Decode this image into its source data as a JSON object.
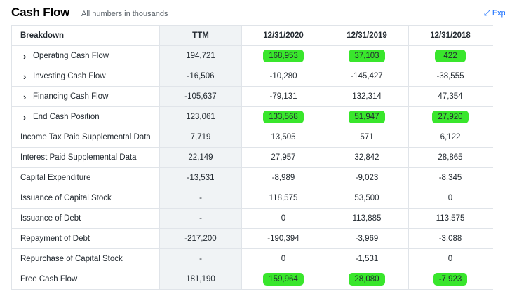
{
  "header": {
    "title": "Cash Flow",
    "subtitle": "All numbers in thousands",
    "expand_label": "Exp"
  },
  "table": {
    "columns": [
      "Breakdown",
      "TTM",
      "12/31/2020",
      "12/31/2019",
      "12/31/2018"
    ],
    "rows": [
      {
        "label": "Operating Cash Flow",
        "expandable": true,
        "values": [
          "194,721",
          "168,953",
          "37,103",
          "422"
        ],
        "highlight": [
          false,
          true,
          true,
          true
        ]
      },
      {
        "label": "Investing Cash Flow",
        "expandable": true,
        "values": [
          "-16,506",
          "-10,280",
          "-145,427",
          "-38,555"
        ],
        "highlight": [
          false,
          false,
          false,
          false
        ]
      },
      {
        "label": "Financing Cash Flow",
        "expandable": true,
        "values": [
          "-105,637",
          "-79,131",
          "132,314",
          "47,354"
        ],
        "highlight": [
          false,
          false,
          false,
          false
        ]
      },
      {
        "label": "End Cash Position",
        "expandable": true,
        "values": [
          "123,061",
          "133,568",
          "51,947",
          "27,920"
        ],
        "highlight": [
          false,
          true,
          true,
          true
        ]
      },
      {
        "label": "Income Tax Paid Supplemental Data",
        "expandable": false,
        "values": [
          "7,719",
          "13,505",
          "571",
          "6,122"
        ],
        "highlight": [
          false,
          false,
          false,
          false
        ]
      },
      {
        "label": "Interest Paid Supplemental Data",
        "expandable": false,
        "values": [
          "22,149",
          "27,957",
          "32,842",
          "28,865"
        ],
        "highlight": [
          false,
          false,
          false,
          false
        ]
      },
      {
        "label": "Capital Expenditure",
        "expandable": false,
        "values": [
          "-13,531",
          "-8,989",
          "-9,023",
          "-8,345"
        ],
        "highlight": [
          false,
          false,
          false,
          false
        ]
      },
      {
        "label": "Issuance of Capital Stock",
        "expandable": false,
        "values": [
          "-",
          "118,575",
          "53,500",
          "0"
        ],
        "highlight": [
          false,
          false,
          false,
          false
        ]
      },
      {
        "label": "Issuance of Debt",
        "expandable": false,
        "values": [
          "-",
          "0",
          "113,885",
          "113,575"
        ],
        "highlight": [
          false,
          false,
          false,
          false
        ]
      },
      {
        "label": "Repayment of Debt",
        "expandable": false,
        "values": [
          "-217,200",
          "-190,394",
          "-3,969",
          "-3,088"
        ],
        "highlight": [
          false,
          false,
          false,
          false
        ]
      },
      {
        "label": "Repurchase of Capital Stock",
        "expandable": false,
        "values": [
          "-",
          "0",
          "-1,531",
          "0"
        ],
        "highlight": [
          false,
          false,
          false,
          false
        ]
      },
      {
        "label": "Free Cash Flow",
        "expandable": false,
        "values": [
          "181,190",
          "159,964",
          "28,080",
          "-7,923"
        ],
        "highlight": [
          false,
          true,
          true,
          true
        ]
      }
    ]
  },
  "colors": {
    "highlight": "#39e62c",
    "link": "#0f69ff",
    "ttm_column_bg": "#f0f3f5"
  },
  "icons": {
    "expand": "expand-arrows-icon",
    "row_toggle": "chevron-right-icon"
  }
}
